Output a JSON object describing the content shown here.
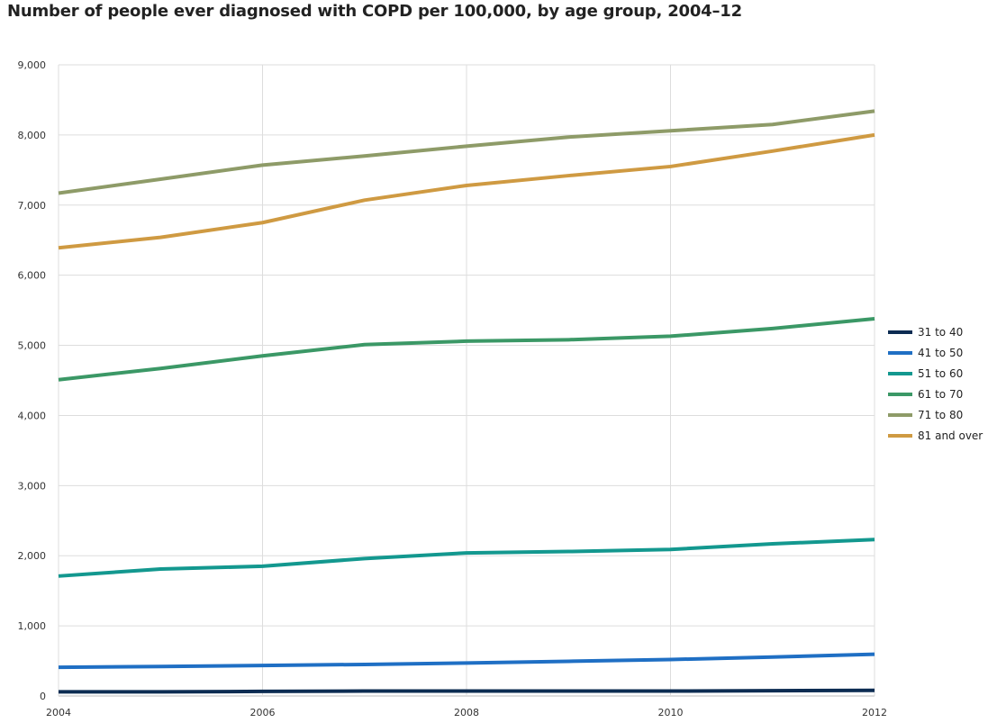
{
  "chart_data": {
    "type": "line",
    "title": "Number of people ever diagnosed with COPD per 100,000, by age group, 2004–12",
    "xlabel": "",
    "ylabel": "",
    "x": [
      2004,
      2005,
      2006,
      2007,
      2008,
      2009,
      2010,
      2011,
      2012
    ],
    "x_ticks": [
      "2004",
      "2006",
      "2008",
      "2010",
      "2012"
    ],
    "ylim": [
      0,
      9000
    ],
    "y_ticks": [
      "0",
      "1,000",
      "2,000",
      "3,000",
      "4,000",
      "5,000",
      "6,000",
      "7,000",
      "8,000",
      "9,000"
    ],
    "grid": true,
    "legend_position": "right",
    "series": [
      {
        "name": "31 to 40",
        "color": "#0c2c52",
        "values": [
          60,
          60,
          65,
          70,
          70,
          70,
          70,
          75,
          80
        ]
      },
      {
        "name": "41 to 50",
        "color": "#1f6fc4",
        "values": [
          410,
          420,
          435,
          450,
          470,
          495,
          520,
          555,
          595
        ]
      },
      {
        "name": "51 to 60",
        "color": "#13988f",
        "values": [
          1710,
          1810,
          1850,
          1960,
          2040,
          2060,
          2090,
          2170,
          2230
        ]
      },
      {
        "name": "61 to 70",
        "color": "#3b9866",
        "values": [
          4510,
          4670,
          4850,
          5010,
          5060,
          5080,
          5130,
          5240,
          5380
        ]
      },
      {
        "name": "71 to 80",
        "color": "#8e9b68",
        "values": [
          7170,
          7370,
          7570,
          7700,
          7840,
          7970,
          8060,
          8150,
          8340
        ]
      },
      {
        "name": "81 and over",
        "color": "#cf9a42",
        "values": [
          6390,
          6540,
          6750,
          7070,
          7280,
          7420,
          7550,
          7770,
          8000
        ]
      }
    ]
  }
}
